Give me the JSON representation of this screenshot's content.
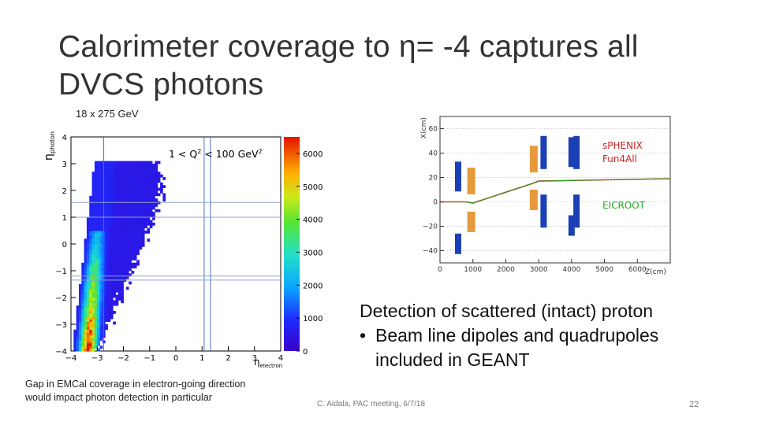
{
  "slide": {
    "title": "Calorimeter coverage to η= -4 captures all DVCS photons",
    "energy_label": "18 x 275 GeV",
    "q2_label": "1 < Q",
    "q2_sup": "2",
    "q2_label_mid": " < 100 GeV",
    "q2_sup2": "2",
    "gap_note_line1": "Gap in EMCal coverage in electron-going direction",
    "gap_note_line2": "would impact photon detection in particular",
    "detection_heading": "Detection of scattered (intact) proton",
    "detection_bullet": "Beam line dipoles and quadrupoles included in GEANT",
    "bullet_symbol": "•",
    "footer": "C. Aidala, PAC meeting, 6/7/18",
    "page_number": "22"
  },
  "hist": {
    "y_axis_label": "η",
    "y_axis_sub": "photon",
    "x_axis_label": "η",
    "x_axis_sub": "electron",
    "x_ticks": [
      "−4",
      "−3",
      "−2",
      "−1",
      "0",
      "1",
      "2",
      "3",
      "4"
    ],
    "y_ticks": [
      "4",
      "3",
      "2",
      "1",
      "0",
      "−1",
      "−2",
      "−3",
      "−4"
    ],
    "colorbar_ticks": [
      "6000",
      "5000",
      "4000",
      "3000",
      "2000",
      "1000",
      "0"
    ]
  },
  "rightplot": {
    "y_axis_label": "X(cm)",
    "x_axis_label": "Z(cm)",
    "y_ticks": [
      "60",
      "40",
      "20",
      "0",
      "−20",
      "−40"
    ],
    "x_ticks": [
      "0",
      "1000",
      "2000",
      "3000",
      "4000",
      "5000",
      "6000"
    ],
    "legend_sphenix_1": "sPHENIX",
    "legend_sphenix_2": "Fun4All",
    "legend_eicroot": "EICROOT",
    "colors": {
      "sphenix": "#cc2222",
      "eicroot": "#22aa22",
      "dipole": "#e79a3c",
      "quad": "#1b3fb5"
    }
  },
  "chart_data": [
    {
      "type": "heatmap",
      "title": "",
      "xlabel": "η electron",
      "ylabel": "η photon",
      "xlim": [
        -4,
        4
      ],
      "ylim": [
        -4,
        4
      ],
      "zlim": [
        0,
        6500
      ],
      "colorbar_ticks": [
        0,
        1000,
        2000,
        3000,
        4000,
        5000,
        6000
      ],
      "annotation": "1 < Q2 < 100 GeV2"
    },
    {
      "type": "line",
      "xlabel": "Z(cm)",
      "ylabel": "X(cm)",
      "xlim": [
        0,
        7000
      ],
      "ylim": [
        -50,
        70
      ],
      "series": [
        {
          "name": "sPHENIX Fun4All",
          "x": [
            0,
            800,
            1000,
            2800,
            3000,
            7000
          ],
          "y": [
            0,
            0,
            -1,
            15,
            17,
            19
          ]
        },
        {
          "name": "EICROOT",
          "x": [
            0,
            800,
            1000,
            2800,
            3000,
            7000
          ],
          "y": [
            0,
            0,
            -1,
            15,
            17,
            19
          ]
        }
      ]
    }
  ]
}
